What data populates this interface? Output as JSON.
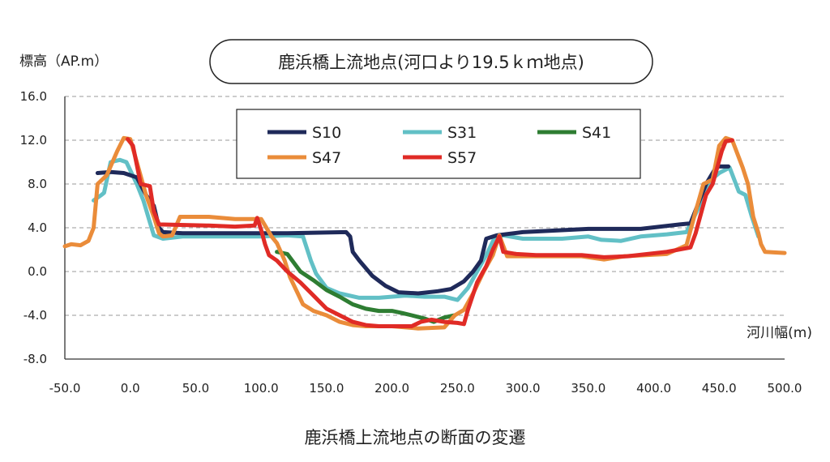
{
  "chart_data": {
    "type": "line",
    "title": "鹿浜橋上流地点(河口より19.5ｋｍ地点)",
    "caption": "鹿浜橋上流地点の断面の変遷",
    "ylabel": "標高（AP.m）",
    "xlabel": "河川幅(m)",
    "xlim": [
      -50,
      500
    ],
    "ylim": [
      -8,
      16
    ],
    "x_ticks": [
      "-50.0",
      "0.0",
      "50.0",
      "100.0",
      "150.0",
      "200.0",
      "250.0",
      "300.0",
      "350.0",
      "400.0",
      "450.0",
      "500.0"
    ],
    "y_ticks": [
      "16.0",
      "12.0",
      "8.0",
      "4.0",
      "0.0",
      "-4.0",
      "-8.0"
    ],
    "grid": "horizontal dashed",
    "legend_position": "top-center",
    "series": [
      {
        "name": "S10",
        "color": "#1f2a5a",
        "points": [
          [
            -25,
            9
          ],
          [
            -15,
            9.1
          ],
          [
            -5,
            9
          ],
          [
            5,
            8.6
          ],
          [
            12,
            7
          ],
          [
            18,
            6
          ],
          [
            22,
            4
          ],
          [
            25,
            3.6
          ],
          [
            40,
            3.5
          ],
          [
            80,
            3.5
          ],
          [
            120,
            3.5
          ],
          [
            165,
            3.6
          ],
          [
            168,
            3.2
          ],
          [
            170,
            1.8
          ],
          [
            175,
            1
          ],
          [
            185,
            -0.4
          ],
          [
            195,
            -1.3
          ],
          [
            205,
            -1.9
          ],
          [
            220,
            -2
          ],
          [
            235,
            -1.8
          ],
          [
            245,
            -1.6
          ],
          [
            255,
            -0.9
          ],
          [
            262,
            0
          ],
          [
            268,
            1
          ],
          [
            272,
            3
          ],
          [
            280,
            3.3
          ],
          [
            300,
            3.6
          ],
          [
            350,
            3.9
          ],
          [
            390,
            3.9
          ],
          [
            420,
            4.3
          ],
          [
            428,
            4.4
          ],
          [
            440,
            8
          ],
          [
            448,
            9.6
          ],
          [
            457,
            9.6
          ]
        ]
      },
      {
        "name": "S31",
        "color": "#62c0c6",
        "points": [
          [
            -28,
            6.5
          ],
          [
            -22,
            7
          ],
          [
            -20,
            7.2
          ],
          [
            -15,
            10
          ],
          [
            -8,
            10.2
          ],
          [
            -3,
            10
          ],
          [
            5,
            8
          ],
          [
            10,
            6.5
          ],
          [
            15,
            4.5
          ],
          [
            18,
            3.3
          ],
          [
            25,
            3
          ],
          [
            40,
            3.2
          ],
          [
            60,
            3.2
          ],
          [
            80,
            3.2
          ],
          [
            100,
            3.2
          ],
          [
            120,
            3.3
          ],
          [
            132,
            3.2
          ],
          [
            138,
            1
          ],
          [
            142,
            -0.2
          ],
          [
            150,
            -1.5
          ],
          [
            160,
            -2
          ],
          [
            175,
            -2.4
          ],
          [
            190,
            -2.4
          ],
          [
            210,
            -2.2
          ],
          [
            225,
            -2.3
          ],
          [
            240,
            -2.3
          ],
          [
            250,
            -2.6
          ],
          [
            258,
            -1.5
          ],
          [
            265,
            0
          ],
          [
            272,
            1.5
          ],
          [
            278,
            3
          ],
          [
            285,
            3.3
          ],
          [
            300,
            3
          ],
          [
            330,
            3
          ],
          [
            350,
            3.2
          ],
          [
            360,
            2.9
          ],
          [
            375,
            2.8
          ],
          [
            390,
            3.2
          ],
          [
            410,
            3.4
          ],
          [
            425,
            3.6
          ],
          [
            435,
            6
          ],
          [
            445,
            8.5
          ],
          [
            450,
            9
          ],
          [
            458,
            9.5
          ],
          [
            465,
            7.3
          ],
          [
            470,
            7
          ],
          [
            475,
            5
          ],
          [
            480,
            3.2
          ]
        ]
      },
      {
        "name": "S41",
        "color": "#2e7d32",
        "points": [
          [
            112,
            1.8
          ],
          [
            120,
            1.6
          ],
          [
            130,
            0
          ],
          [
            140,
            -0.8
          ],
          [
            150,
            -1.7
          ],
          [
            160,
            -2.3
          ],
          [
            170,
            -3
          ],
          [
            180,
            -3.4
          ],
          [
            190,
            -3.6
          ],
          [
            200,
            -3.6
          ],
          [
            208,
            -3.8
          ],
          [
            215,
            -4
          ],
          [
            225,
            -4.3
          ],
          [
            232,
            -4.6
          ],
          [
            240,
            -4.2
          ],
          [
            248,
            -4
          ]
        ]
      },
      {
        "name": "S47",
        "color": "#ea8c3a",
        "points": [
          [
            -50,
            2.3
          ],
          [
            -45,
            2.5
          ],
          [
            -38,
            2.4
          ],
          [
            -32,
            2.8
          ],
          [
            -28,
            4
          ],
          [
            -25,
            8
          ],
          [
            -18,
            8.8
          ],
          [
            -10,
            11
          ],
          [
            -5,
            12.2
          ],
          [
            0,
            12.1
          ],
          [
            5,
            10
          ],
          [
            12,
            7
          ],
          [
            18,
            5
          ],
          [
            22,
            3.5
          ],
          [
            25,
            3.2
          ],
          [
            32,
            3.3
          ],
          [
            38,
            5
          ],
          [
            60,
            5
          ],
          [
            80,
            4.8
          ],
          [
            100,
            4.8
          ],
          [
            108,
            3.2
          ],
          [
            112,
            2.6
          ],
          [
            118,
            1
          ],
          [
            122,
            -0.5
          ],
          [
            128,
            -2
          ],
          [
            132,
            -3
          ],
          [
            140,
            -3.6
          ],
          [
            150,
            -4
          ],
          [
            160,
            -4.6
          ],
          [
            170,
            -4.9
          ],
          [
            180,
            -5
          ],
          [
            200,
            -5
          ],
          [
            220,
            -5.2
          ],
          [
            240,
            -5.1
          ],
          [
            248,
            -4
          ],
          [
            255,
            -3.5
          ],
          [
            262,
            -2
          ],
          [
            270,
            0
          ],
          [
            277,
            1.5
          ],
          [
            282,
            3.3
          ],
          [
            288,
            1.4
          ],
          [
            300,
            1.4
          ],
          [
            320,
            1.4
          ],
          [
            345,
            1.4
          ],
          [
            362,
            1.1
          ],
          [
            378,
            1.4
          ],
          [
            410,
            1.6
          ],
          [
            425,
            2.4
          ],
          [
            432,
            5.5
          ],
          [
            438,
            8
          ],
          [
            445,
            8.4
          ],
          [
            450,
            11.5
          ],
          [
            455,
            12.2
          ],
          [
            460,
            12
          ],
          [
            468,
            9.5
          ],
          [
            472,
            8
          ],
          [
            476,
            5
          ],
          [
            480,
            3.5
          ],
          [
            482,
            2.5
          ],
          [
            485,
            1.8
          ],
          [
            500,
            1.7
          ]
        ]
      },
      {
        "name": "S57",
        "color": "#e02b26",
        "points": [
          [
            -2,
            12.1
          ],
          [
            2,
            11.5
          ],
          [
            8,
            8
          ],
          [
            15,
            7.8
          ],
          [
            18,
            5.5
          ],
          [
            22,
            4.3
          ],
          [
            60,
            4.2
          ],
          [
            80,
            4.1
          ],
          [
            95,
            4.2
          ],
          [
            97,
            4.9
          ],
          [
            100,
            3.8
          ],
          [
            103,
            2.5
          ],
          [
            106,
            1.5
          ],
          [
            112,
            1
          ],
          [
            120,
            0
          ],
          [
            130,
            -1
          ],
          [
            140,
            -2.2
          ],
          [
            150,
            -3.4
          ],
          [
            160,
            -4
          ],
          [
            170,
            -4.6
          ],
          [
            180,
            -4.9
          ],
          [
            190,
            -5
          ],
          [
            200,
            -5
          ],
          [
            215,
            -5
          ],
          [
            222,
            -4.6
          ],
          [
            230,
            -4.4
          ],
          [
            240,
            -4.6
          ],
          [
            250,
            -4.7
          ],
          [
            255,
            -4.8
          ],
          [
            258,
            -3.5
          ],
          [
            265,
            -1
          ],
          [
            272,
            0.5
          ],
          [
            277,
            2
          ],
          [
            282,
            3.2
          ],
          [
            285,
            1.8
          ],
          [
            295,
            1.6
          ],
          [
            310,
            1.5
          ],
          [
            345,
            1.5
          ],
          [
            362,
            1.3
          ],
          [
            380,
            1.4
          ],
          [
            410,
            1.8
          ],
          [
            428,
            2.2
          ],
          [
            432,
            3.5
          ],
          [
            440,
            7
          ],
          [
            445,
            8
          ],
          [
            452,
            11
          ],
          [
            455,
            11.9
          ],
          [
            460,
            12
          ]
        ]
      }
    ]
  }
}
